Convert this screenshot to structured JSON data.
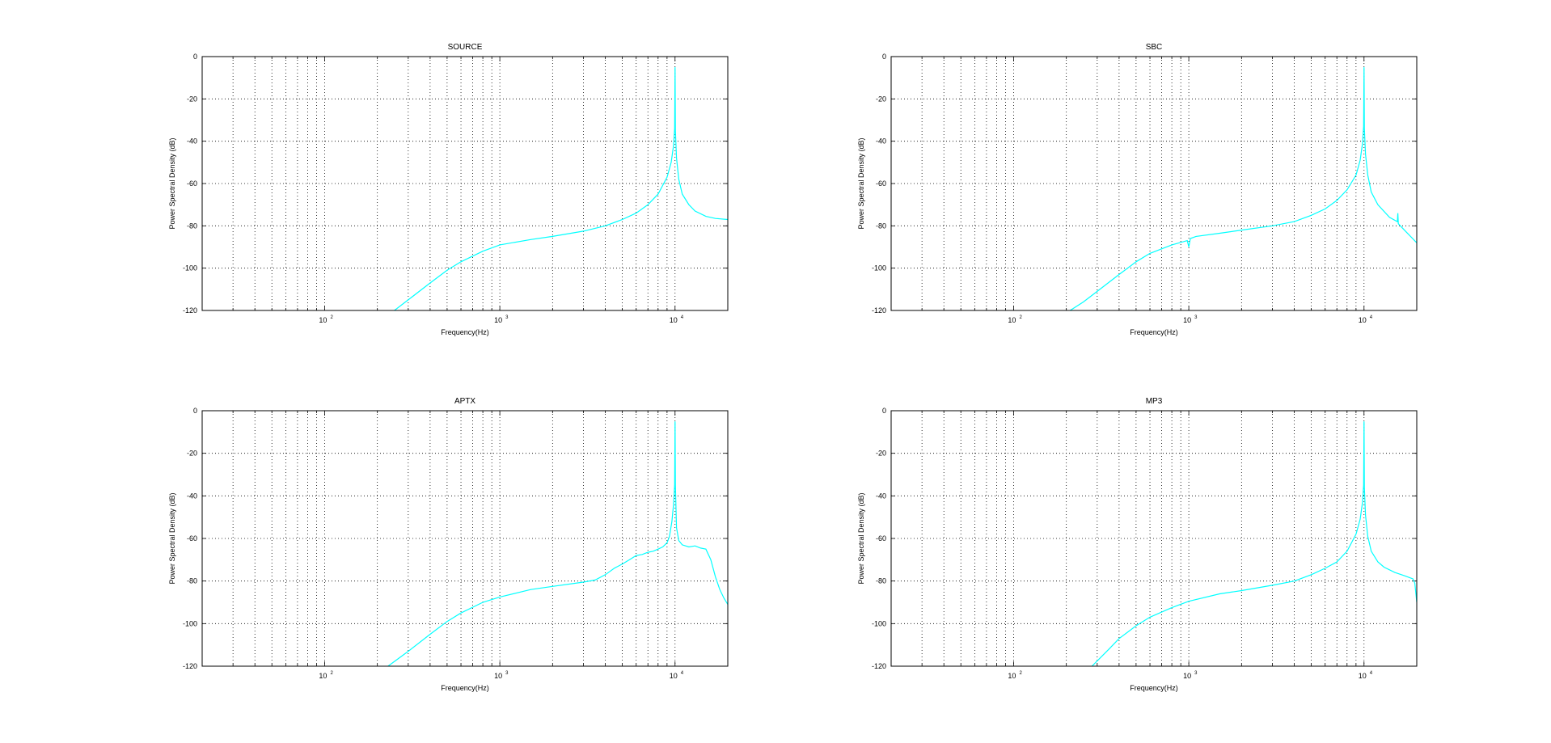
{
  "chart_data": [
    {
      "type": "line",
      "title": "SOURCE",
      "xlabel": "Frequency(Hz)",
      "ylabel": "Power Spectral Density (dB)",
      "xscale": "log",
      "xlim": [
        20,
        20000
      ],
      "ylim": [
        -120,
        0
      ],
      "yticks": [
        0,
        -20,
        -40,
        -60,
        -80,
        -100,
        -120
      ],
      "xtick_labels": [
        {
          "base": "10",
          "exp": "2",
          "value": 100
        },
        {
          "base": "10",
          "exp": "3",
          "value": 1000
        },
        {
          "base": "10",
          "exp": "4",
          "value": 10000
        }
      ],
      "grid": true,
      "color": "#00ffff",
      "series": [
        {
          "x": [
            250,
            300,
            400,
            500,
            600,
            800,
            1000,
            1500,
            2000,
            3000,
            4000,
            5000,
            6000,
            7000,
            8000,
            9000,
            9500,
            9800,
            9950,
            10000,
            10050,
            10200,
            10500,
            11000,
            12000,
            13000,
            15000,
            17000,
            20000
          ],
          "y": [
            -120,
            -115,
            -107,
            -101,
            -97,
            -92,
            -89,
            -86.5,
            -85,
            -82.5,
            -80,
            -77,
            -74,
            -70,
            -65,
            -57,
            -50,
            -42,
            -34,
            -5,
            -35,
            -48,
            -58,
            -65,
            -70,
            -73,
            -75.5,
            -76.5,
            -77
          ]
        }
      ]
    },
    {
      "type": "line",
      "title": "SBC",
      "xlabel": "Frequency(Hz)",
      "ylabel": "Power Spectral Density (dB)",
      "xscale": "log",
      "xlim": [
        20,
        20000
      ],
      "ylim": [
        -120,
        0
      ],
      "yticks": [
        0,
        -20,
        -40,
        -60,
        -80,
        -100,
        -120
      ],
      "xtick_labels": [
        {
          "base": "10",
          "exp": "2",
          "value": 100
        },
        {
          "base": "10",
          "exp": "3",
          "value": 1000
        },
        {
          "base": "10",
          "exp": "4",
          "value": 10000
        }
      ],
      "grid": true,
      "color": "#00ffff",
      "series": [
        {
          "x": [
            210,
            250,
            300,
            400,
            500,
            600,
            800,
            980,
            1000,
            1020,
            1100,
            1500,
            2000,
            3000,
            4000,
            5000,
            6000,
            7000,
            8000,
            9000,
            9500,
            9800,
            9950,
            10000,
            10050,
            10200,
            10500,
            11000,
            12000,
            14000,
            15500,
            15600,
            15700,
            17000,
            20000
          ],
          "y": [
            -120,
            -116,
            -111,
            -103,
            -97,
            -93,
            -89,
            -87,
            -90,
            -86,
            -85,
            -83.5,
            -82,
            -80,
            -78,
            -75,
            -72,
            -68,
            -63,
            -56,
            -49,
            -41,
            -33,
            -5,
            -34,
            -46,
            -56,
            -64,
            -70,
            -76,
            -78,
            -74,
            -79,
            -82,
            -88
          ]
        }
      ]
    },
    {
      "type": "line",
      "title": "APTX",
      "xlabel": "Frequency(Hz)",
      "ylabel": "Power Spectral Density (dB)",
      "xscale": "log",
      "xlim": [
        20,
        20000
      ],
      "ylim": [
        -120,
        0
      ],
      "yticks": [
        0,
        -20,
        -40,
        -60,
        -80,
        -100,
        -120
      ],
      "xtick_labels": [
        {
          "base": "10",
          "exp": "2",
          "value": 100
        },
        {
          "base": "10",
          "exp": "3",
          "value": 1000
        },
        {
          "base": "10",
          "exp": "4",
          "value": 10000
        }
      ],
      "grid": true,
      "color": "#00ffff",
      "series": [
        {
          "x": [
            230,
            300,
            400,
            500,
            600,
            800,
            1000,
            1500,
            2000,
            3000,
            3500,
            4000,
            4500,
            5000,
            5500,
            6000,
            6500,
            7000,
            7500,
            8000,
            8500,
            9000,
            9300,
            9600,
            9800,
            9950,
            10000,
            10050,
            10200,
            10500,
            11000,
            12000,
            13000,
            14000,
            15000,
            16000,
            17000,
            18000,
            19000,
            20000
          ],
          "y": [
            -120,
            -113,
            -105,
            -99,
            -95,
            -90,
            -87.5,
            -84,
            -82.5,
            -80.5,
            -79.5,
            -77,
            -74,
            -72,
            -70,
            -68,
            -67.5,
            -66.5,
            -66,
            -65,
            -64,
            -62,
            -59,
            -52,
            -44,
            -35,
            -5,
            -35,
            -55,
            -61,
            -63,
            -64,
            -63.5,
            -64.5,
            -65,
            -70,
            -78,
            -84,
            -88,
            -91
          ]
        }
      ]
    },
    {
      "type": "line",
      "title": "MP3",
      "xlabel": "Frequency(Hz)",
      "ylabel": "Power Spectral Density (dB)",
      "xscale": "log",
      "xlim": [
        20,
        20000
      ],
      "ylim": [
        -120,
        0
      ],
      "yticks": [
        0,
        -20,
        -40,
        -60,
        -80,
        -100,
        -120
      ],
      "xtick_labels": [
        {
          "base": "10",
          "exp": "2",
          "value": 100
        },
        {
          "base": "10",
          "exp": "3",
          "value": 1000
        },
        {
          "base": "10",
          "exp": "4",
          "value": 10000
        }
      ],
      "grid": true,
      "color": "#00ffff",
      "series": [
        {
          "x": [
            280,
            350,
            400,
            500,
            600,
            800,
            1000,
            1500,
            2000,
            3000,
            4000,
            5000,
            6000,
            7000,
            8000,
            9000,
            9500,
            9800,
            9950,
            10000,
            10050,
            10200,
            10500,
            11000,
            12000,
            13000,
            15000,
            17000,
            19000,
            19500,
            20000
          ],
          "y": [
            -120,
            -112,
            -107,
            -101,
            -97,
            -92.5,
            -89.5,
            -86,
            -84.5,
            -82,
            -80,
            -77,
            -74,
            -71,
            -66,
            -58,
            -51,
            -43,
            -35,
            -5,
            -36,
            -49,
            -59,
            -66,
            -71,
            -73.5,
            -76,
            -77.5,
            -79,
            -81,
            -90
          ]
        }
      ]
    }
  ]
}
